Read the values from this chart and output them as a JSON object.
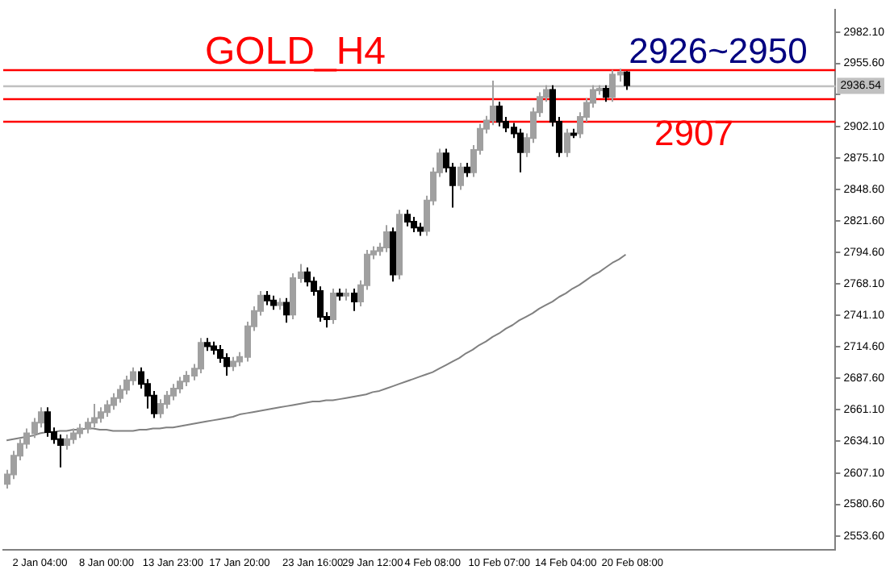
{
  "chart_data": {
    "type": "candlestick",
    "colors": [
      "#a0a0a0",
      "#a0a0a0",
      "#a0a0a0",
      "#a0a0a0",
      "#a0a0a0",
      "#a0a0a0",
      "#000000",
      "#000000",
      "#000000",
      "#a0a0a0",
      "#a0a0a0",
      "#a0a0a0",
      "#a0a0a0",
      "#a0a0a0",
      "#a0a0a0",
      "#a0a0a0",
      "#a0a0a0",
      "#a0a0a0",
      "#a0a0a0",
      "#a0a0a0",
      "#000000",
      "#000000",
      "#000000",
      "#a0a0a0",
      "#a0a0a0",
      "#a0a0a0",
      "#a0a0a0",
      "#a0a0a0",
      "#a0a0a0",
      "#a0a0a0",
      "#000000",
      "#000000",
      "#000000",
      "#000000",
      "#a0a0a0",
      "#a0a0a0",
      "#a0a0a0",
      "#a0a0a0",
      "#a0a0a0",
      "#000000",
      "#000000",
      "#a0a0a0",
      "#000000",
      "#a0a0a0",
      "#a0a0a0",
      "#000000",
      "#000000",
      "#000000",
      "#000000",
      "#a0a0a0",
      "#000000",
      "#a0a0a0",
      "#000000",
      "#a0a0a0",
      "#a0a0a0",
      "#a0a0a0",
      "#a0a0a0",
      "#a0a0a0",
      "#000000",
      "#a0a0a0",
      "#000000",
      "#000000",
      "#000000",
      "#a0a0a0",
      "#a0a0a0",
      "#a0a0a0",
      "#000000",
      "#000000",
      "#a0a0a0",
      "#000000",
      "#a0a0a0",
      "#a0a0a0",
      "#a0a0a0",
      "#a0a0a0",
      "#000000",
      "#000000",
      "#000000",
      "#000000",
      "#a0a0a0",
      "#a0a0a0",
      "#a0a0a0",
      "#a0a0a0",
      "#000000",
      "#000000",
      "#a0a0a0",
      "#000000",
      "#a0a0a0",
      "#a0a0a0",
      "#a0a0a0",
      "#a0a0a0",
      "#000000",
      "#a0a0a0",
      "#a0a0a0",
      "#000000",
      null,
      null,
      null,
      null,
      null,
      null,
      null,
      null,
      null,
      null,
      null,
      null,
      null,
      null,
      null,
      null,
      null,
      null,
      null,
      null,
      null,
      null,
      null,
      null,
      null,
      null,
      null,
      null,
      null,
      null,
      null
    ],
    "categories": [
      null,
      null,
      null,
      null,
      null,
      "2 Jan 04:00",
      null,
      null,
      null,
      null,
      null,
      null,
      null,
      null,
      null,
      "8 Jan 00:00",
      null,
      null,
      null,
      null,
      null,
      null,
      null,
      null,
      null,
      "13 Jan 23:00",
      null,
      null,
      null,
      null,
      null,
      null,
      null,
      null,
      null,
      "17 Jan 20:00",
      null,
      null,
      null,
      null,
      null,
      null,
      null,
      null,
      null,
      null,
      "23 Jan 16:00",
      null,
      null,
      null,
      null,
      null,
      null,
      null,
      null,
      "29 Jan 12:00",
      null,
      null,
      null,
      null,
      null,
      null,
      null,
      null,
      "4 Feb 08:00",
      null,
      null,
      null,
      null,
      null,
      null,
      null,
      null,
      null,
      "10 Feb 07:00",
      null,
      null,
      null,
      null,
      null,
      null,
      null,
      null,
      null,
      "14 Feb 04:00",
      null,
      null,
      null,
      null,
      null,
      null,
      null,
      null,
      null,
      "20 Feb 08:00",
      null,
      null,
      null,
      null,
      null,
      null,
      null,
      null,
      null,
      null,
      null,
      null,
      null,
      null,
      null,
      null,
      null,
      null,
      null,
      null,
      null,
      null,
      null,
      null,
      null,
      null,
      null,
      null,
      null,
      null
    ],
    "ohlc": [
      [
        2598,
        2610,
        2594,
        2606
      ],
      [
        2606,
        2626,
        2602,
        2622
      ],
      [
        2622,
        2636,
        2618,
        2632
      ],
      [
        2632,
        2645,
        2628,
        2641
      ],
      [
        2641,
        2654,
        2637,
        2650
      ],
      [
        2650,
        2663,
        2646,
        2659
      ],
      [
        2659,
        2663,
        2638,
        2642
      ],
      [
        2642,
        2646,
        2632,
        2636
      ],
      [
        2636,
        2640,
        2612,
        2631
      ],
      [
        2631,
        2640,
        2627,
        2636
      ],
      [
        2636,
        2645,
        2632,
        2641
      ],
      [
        2641,
        2649,
        2637,
        2645
      ],
      [
        2645,
        2654,
        2641,
        2650
      ],
      [
        2650,
        2666,
        2646,
        2654
      ],
      [
        2654,
        2663,
        2650,
        2659
      ],
      [
        2659,
        2669,
        2655,
        2665
      ],
      [
        2665,
        2675,
        2661,
        2671
      ],
      [
        2671,
        2682,
        2667,
        2678
      ],
      [
        2678,
        2690,
        2674,
        2686
      ],
      [
        2686,
        2697,
        2682,
        2693
      ],
      [
        2693,
        2697,
        2679,
        2683
      ],
      [
        2683,
        2687,
        2662,
        2673
      ],
      [
        2673,
        2677,
        2654,
        2658
      ],
      [
        2658,
        2670,
        2654,
        2666
      ],
      [
        2666,
        2677,
        2662,
        2673
      ],
      [
        2673,
        2683,
        2669,
        2679
      ],
      [
        2679,
        2689,
        2675,
        2685
      ],
      [
        2685,
        2694,
        2681,
        2690
      ],
      [
        2690,
        2700,
        2686,
        2696
      ],
      [
        2696,
        2722,
        2692,
        2718
      ],
      [
        2718,
        2722,
        2711,
        2715
      ],
      [
        2715,
        2719,
        2708,
        2712
      ],
      [
        2712,
        2716,
        2701,
        2705
      ],
      [
        2705,
        2709,
        2690,
        2698
      ],
      [
        2698,
        2706,
        2694,
        2702
      ],
      [
        2702,
        2710,
        2698,
        2706
      ],
      [
        2706,
        2736,
        2702,
        2732
      ],
      [
        2732,
        2749,
        2728,
        2745
      ],
      [
        2745,
        2762,
        2741,
        2758
      ],
      [
        2758,
        2762,
        2750,
        2754
      ],
      [
        2754,
        2758,
        2746,
        2750
      ],
      [
        2750,
        2756,
        2746,
        2752
      ],
      [
        2752,
        2756,
        2735,
        2742
      ],
      [
        2742,
        2777,
        2738,
        2773
      ],
      [
        2773,
        2785,
        2769,
        2778
      ],
      [
        2778,
        2782,
        2766,
        2770
      ],
      [
        2770,
        2774,
        2758,
        2762
      ],
      [
        2762,
        2766,
        2736,
        2740
      ],
      [
        2740,
        2744,
        2731,
        2738
      ],
      [
        2738,
        2764,
        2734,
        2760
      ],
      [
        2760,
        2764,
        2754,
        2758
      ],
      [
        2758,
        2764,
        2754,
        2760
      ],
      [
        2760,
        2764,
        2745,
        2753
      ],
      [
        2753,
        2771,
        2749,
        2767
      ],
      [
        2767,
        2797,
        2763,
        2793
      ],
      [
        2793,
        2800,
        2789,
        2796
      ],
      [
        2796,
        2803,
        2792,
        2799
      ],
      [
        2799,
        2818,
        2795,
        2812
      ],
      [
        2812,
        2816,
        2770,
        2776
      ],
      [
        2776,
        2831,
        2772,
        2827
      ],
      [
        2827,
        2831,
        2817,
        2821
      ],
      [
        2821,
        2825,
        2812,
        2816
      ],
      [
        2816,
        2820,
        2809,
        2813
      ],
      [
        2813,
        2843,
        2809,
        2839
      ],
      [
        2839,
        2867,
        2835,
        2863
      ],
      [
        2863,
        2883,
        2859,
        2879
      ],
      [
        2879,
        2883,
        2863,
        2867
      ],
      [
        2867,
        2871,
        2833,
        2852
      ],
      [
        2852,
        2871,
        2848,
        2867
      ],
      [
        2867,
        2871,
        2859,
        2863
      ],
      [
        2863,
        2886,
        2859,
        2882
      ],
      [
        2882,
        2904,
        2878,
        2900
      ],
      [
        2900,
        2911,
        2896,
        2907
      ],
      [
        2907,
        2941,
        2903,
        2919
      ],
      [
        2919,
        2923,
        2902,
        2906
      ],
      [
        2906,
        2910,
        2897,
        2901
      ],
      [
        2901,
        2905,
        2892,
        2896
      ],
      [
        2896,
        2900,
        2863,
        2880
      ],
      [
        2880,
        2896,
        2876,
        2892
      ],
      [
        2892,
        2918,
        2888,
        2914
      ],
      [
        2914,
        2931,
        2910,
        2927
      ],
      [
        2927,
        2937,
        2923,
        2933
      ],
      [
        2933,
        2937,
        2902,
        2906
      ],
      [
        2906,
        2910,
        2876,
        2880
      ],
      [
        2880,
        2900,
        2876,
        2896
      ],
      [
        2896,
        2900,
        2892,
        2896
      ],
      [
        2896,
        2914,
        2892,
        2910
      ],
      [
        2910,
        2926,
        2906,
        2922
      ],
      [
        2922,
        2937,
        2918,
        2933
      ],
      [
        2933,
        2937,
        2929,
        2934
      ],
      [
        2934,
        2937,
        2923,
        2927
      ],
      [
        2927,
        2950,
        2923,
        2946
      ],
      [
        2946,
        2951,
        2940,
        2948
      ],
      [
        2948,
        2949,
        2933,
        2937
      ],
      null,
      null,
      null,
      null,
      null,
      null,
      null,
      null,
      null,
      null,
      null,
      null,
      null,
      null,
      null,
      null,
      null,
      null,
      null,
      null,
      null,
      null,
      null,
      null,
      null,
      null,
      null,
      null,
      null,
      null,
      null
    ],
    "series": [
      {
        "type": "line",
        "color": "#808080",
        "values": [
          2635,
          2636,
          2637,
          2638,
          2639,
          2641,
          2642,
          2642,
          2643,
          2643,
          2644,
          2644,
          2645,
          2645,
          2644,
          2644,
          2643,
          2643,
          2643,
          2643,
          2644,
          2644,
          2645,
          2645,
          2646,
          2646,
          2647,
          2648,
          2649,
          2650,
          2651,
          2652,
          2653,
          2654,
          2655,
          2657,
          2658,
          2659,
          2660,
          2661,
          2662,
          2663,
          2664,
          2665,
          2666,
          2667,
          2668,
          2668,
          2669,
          2669,
          2670,
          2671,
          2672,
          2673,
          2674,
          2676,
          2677,
          2679,
          2681,
          2683,
          2685,
          2687,
          2689,
          2691,
          2693,
          2696,
          2699,
          2702,
          2705,
          2709,
          2712,
          2716,
          2719,
          2723,
          2726,
          2730,
          2733,
          2737,
          2740,
          2743,
          2747,
          2750,
          2753,
          2757,
          2760,
          2764,
          2767,
          2771,
          2775,
          2778,
          2782,
          2786,
          2789,
          2793,
          null,
          null,
          null,
          null,
          null,
          null,
          null,
          null,
          null,
          null,
          null,
          null,
          null,
          null,
          null,
          null,
          null,
          null,
          null,
          null,
          null,
          null,
          null,
          null,
          null,
          null,
          null,
          null,
          null,
          null,
          null
        ]
      }
    ],
    "ylim": [
      2541.6,
      3001
    ],
    "yticks": [
      {
        "value": 2982.1,
        "label": "2982.10"
      },
      {
        "value": 2955.6,
        "label": "2955.60"
      },
      {
        "value": 2929.1,
        "label": null
      },
      {
        "value": 2902.1,
        "label": "2902.10"
      },
      {
        "value": 2875.1,
        "label": "2875.10"
      },
      {
        "value": 2848.6,
        "label": "2848.60"
      },
      {
        "value": 2821.6,
        "label": "2821.60"
      },
      {
        "value": 2794.6,
        "label": "2794.60"
      },
      {
        "value": 2768.1,
        "label": "2768.10"
      },
      {
        "value": 2741.1,
        "label": "2741.10"
      },
      {
        "value": 2714.6,
        "label": "2714.60"
      },
      {
        "value": 2687.6,
        "label": "2687.60"
      },
      {
        "value": 2661.1,
        "label": "2661.10"
      },
      {
        "value": 2634.1,
        "label": "2634.10"
      },
      {
        "value": 2607.1,
        "label": "2607.10"
      },
      {
        "value": 2580.6,
        "label": "2580.60"
      },
      {
        "value": 2553.6,
        "label": "2553.60"
      }
    ],
    "ref_lines": [
      {
        "axis": "y",
        "value": 2950,
        "color": "#ff0000"
      },
      {
        "axis": "y",
        "value": 2926,
        "color": "#ff0000"
      },
      {
        "axis": "y",
        "value": 2907,
        "color": "#ff0000"
      },
      {
        "axis": "y",
        "value": 2936.54,
        "color": "#c0c0c0",
        "label": "2936.54"
      }
    ],
    "annotations": [
      "GOLD_H4",
      "2926~2950",
      "2907"
    ],
    "legend": false,
    "grid": false
  }
}
